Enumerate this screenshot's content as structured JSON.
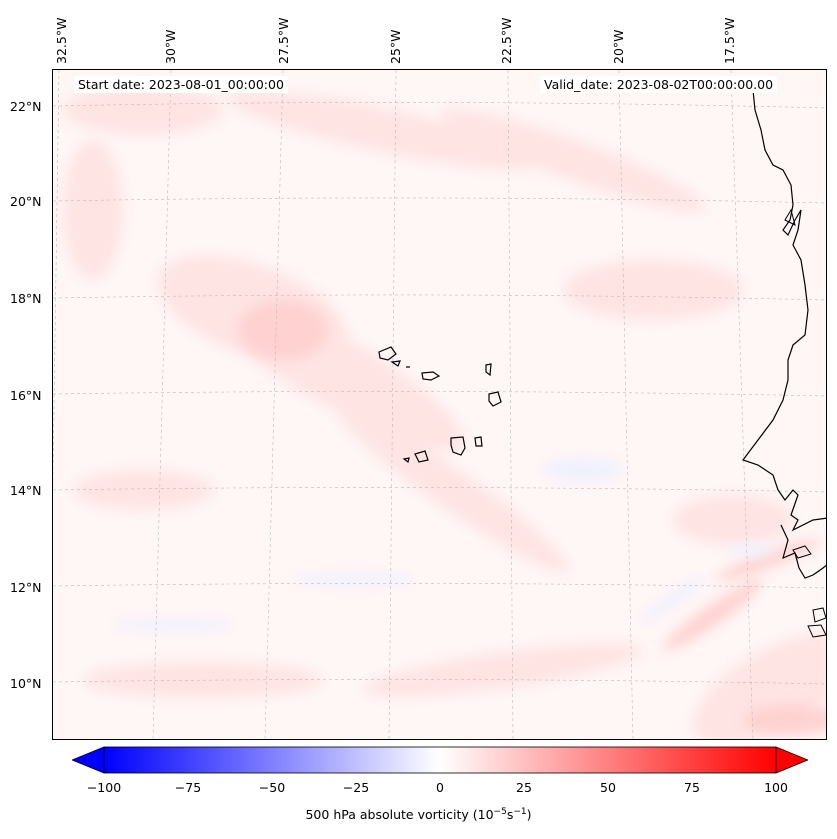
{
  "header": {
    "start_date": "Start date: 2023-08-01_00:00:00",
    "valid_date": "Valid_date: 2023-08-02T00:00:00.00"
  },
  "axes": {
    "longitude_labels": [
      "32.5°W",
      "30°W",
      "27.5°W",
      "25°W",
      "22.5°W",
      "20°W",
      "17.5°W"
    ],
    "latitude_labels": [
      "22°N",
      "20°N",
      "18°N",
      "16°N",
      "14°N",
      "12°N",
      "10°N"
    ]
  },
  "colorbar": {
    "ticks": [
      "−100",
      "−75",
      "−50",
      "−25",
      "0",
      "25",
      "50",
      "75",
      "100"
    ],
    "min": -100,
    "max": 100,
    "label_prefix": "500 hPa absolute vorticity (10",
    "label_exp1": "−5",
    "label_mid": "s",
    "label_exp2": "−1",
    "label_suffix": ")",
    "negative_color": "#0000ff",
    "positive_color": "#ff0000"
  },
  "features": {
    "coastline": "West Africa coastline",
    "islands": "Cape Verde Islands"
  }
}
